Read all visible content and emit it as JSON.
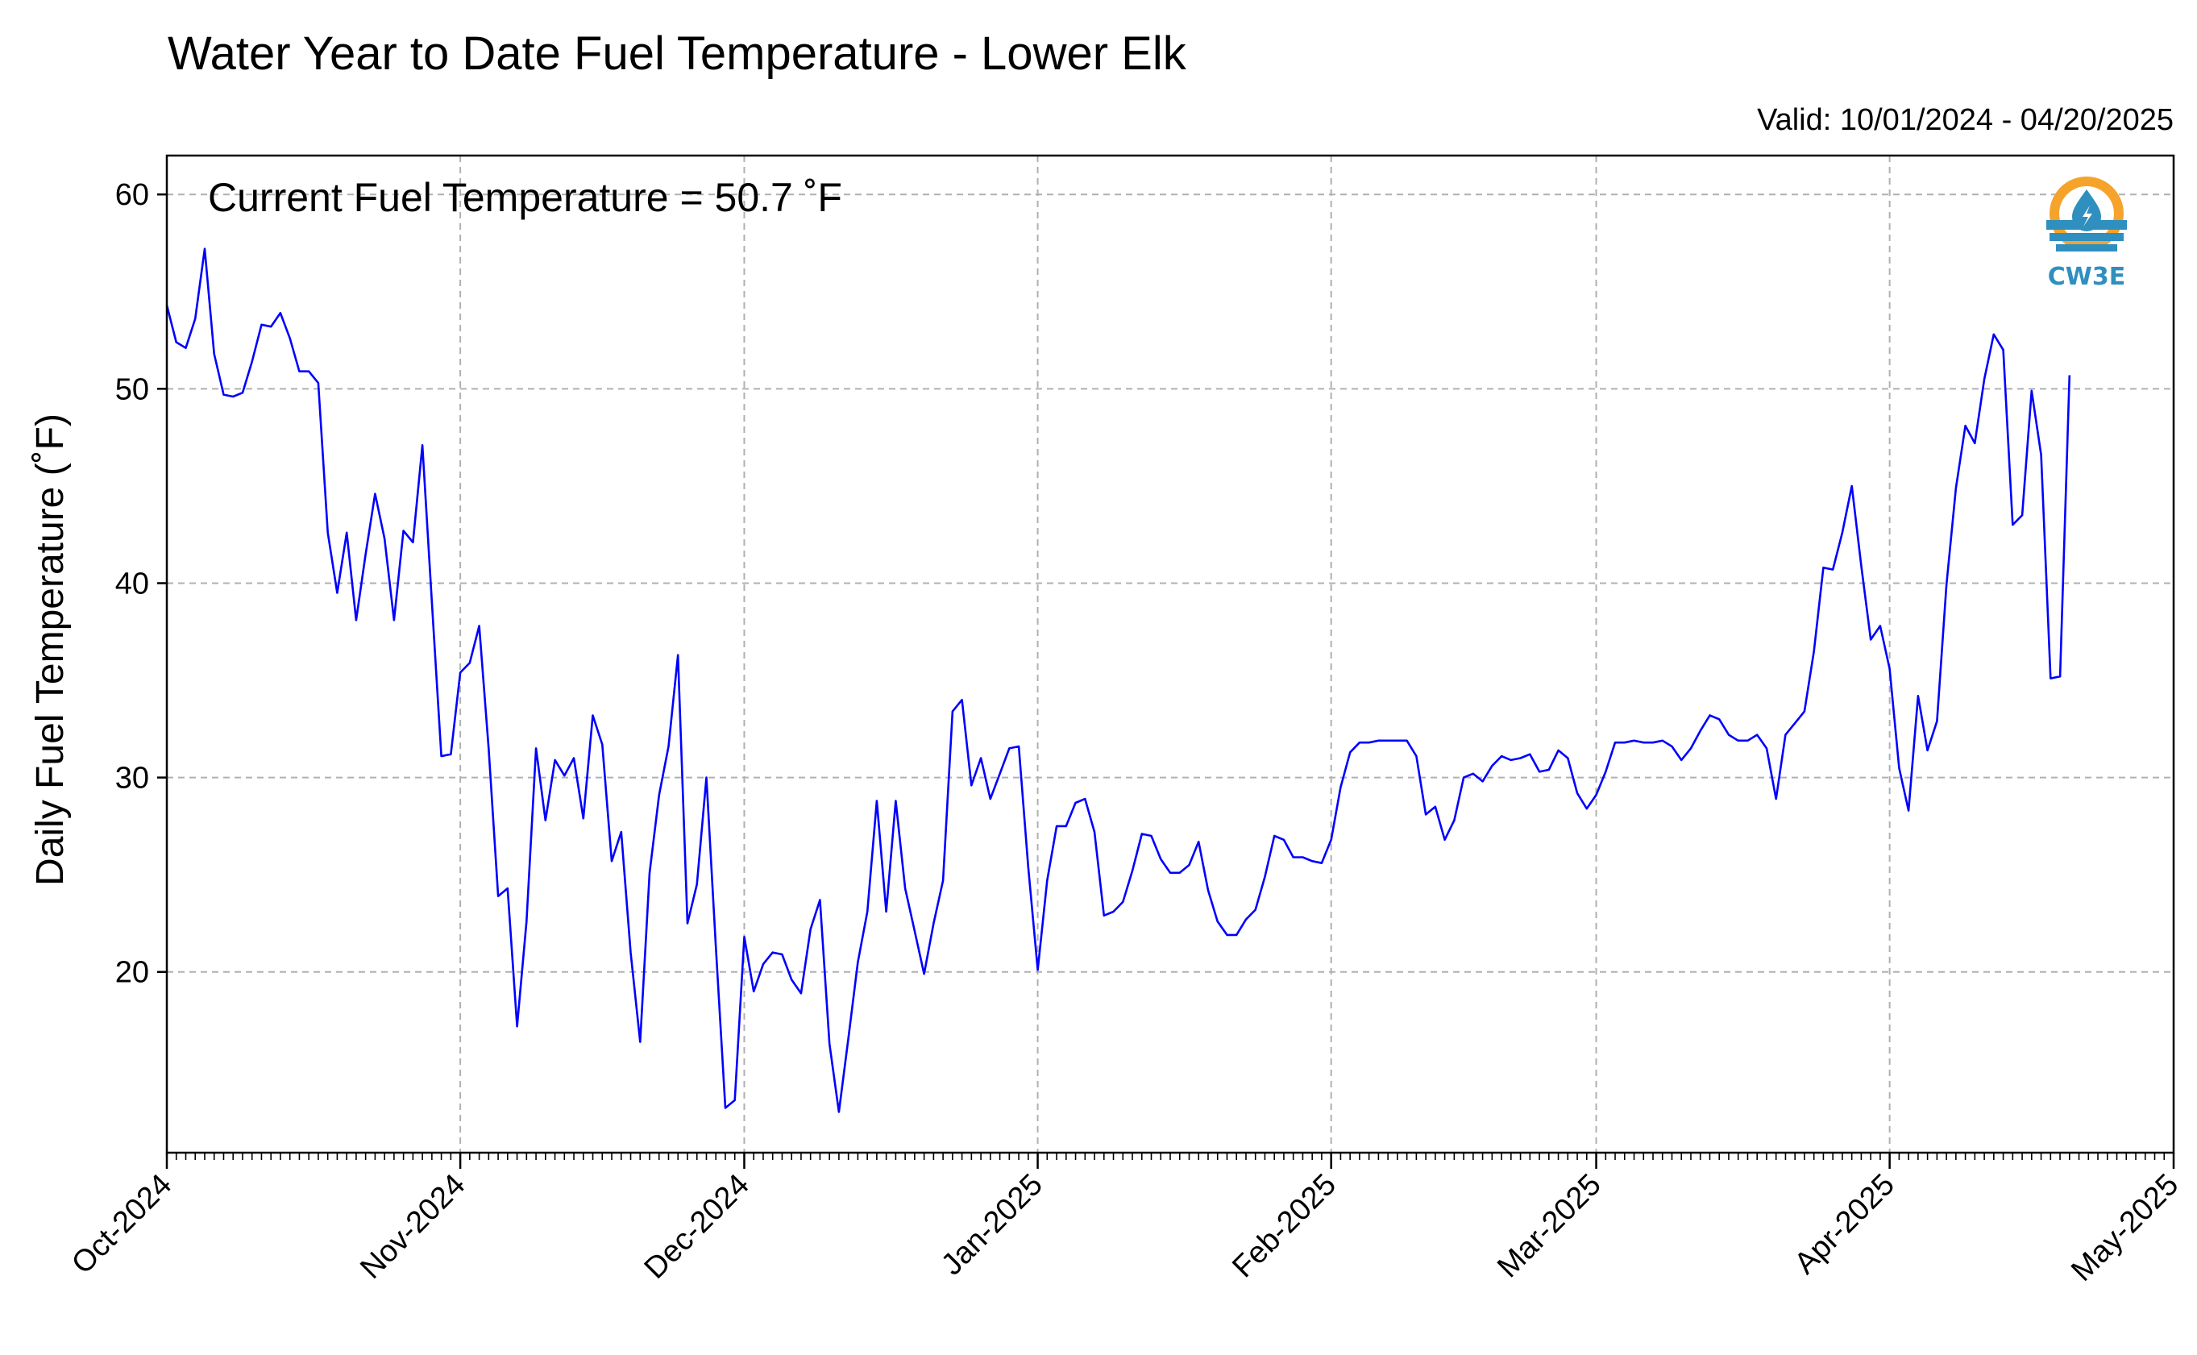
{
  "chart_data": {
    "type": "line",
    "title": "Water Year to Date Fuel Temperature - Lower Elk",
    "valid_label": "Valid: 10/01/2024 - 04/20/2025",
    "annotation": "Current Fuel Temperature = 50.7 ˚F",
    "ylabel": "Daily Fuel Temperature (˚F)",
    "xlabel": "",
    "ylim": [
      10.7,
      62
    ],
    "xlim": [
      "2024-10-01",
      "2025-05-01"
    ],
    "yticks": [
      20,
      30,
      40,
      50,
      60
    ],
    "ytick_labels": [
      "20",
      "30",
      "40",
      "50",
      "60"
    ],
    "xticks": [
      "2024-10-01",
      "2024-11-01",
      "2024-12-01",
      "2025-01-01",
      "2025-02-01",
      "2025-03-01",
      "2025-04-01",
      "2025-05-01"
    ],
    "xtick_labels": [
      "Oct-2024",
      "Nov-2024",
      "Dec-2024",
      "Jan-2025",
      "Feb-2025",
      "Mar-2025",
      "Apr-2025",
      "May-2025"
    ],
    "grid": true,
    "series": [
      {
        "color": "#0000ff",
        "start_date": "2024-10-01",
        "values": [
          54.3,
          52.4,
          52.1,
          53.6,
          57.2,
          51.8,
          49.7,
          49.6,
          49.8,
          51.4,
          53.3,
          53.2,
          53.9,
          52.6,
          50.9,
          50.9,
          50.3,
          42.6,
          39.5,
          42.6,
          38.1,
          41.5,
          44.6,
          42.3,
          38.1,
          42.7,
          42.1,
          47.1,
          39.0,
          31.1,
          31.2,
          35.4,
          35.9,
          37.8,
          31.5,
          23.9,
          24.3,
          17.2,
          22.6,
          31.5,
          27.8,
          30.9,
          30.1,
          31.0,
          27.9,
          33.2,
          31.7,
          25.7,
          27.2,
          21.0,
          16.4,
          25.1,
          29.1,
          31.6,
          36.3,
          22.5,
          24.5,
          30.0,
          21.3,
          13.0,
          13.4,
          21.8,
          19.0,
          20.4,
          21.0,
          20.9,
          19.6,
          18.9,
          22.2,
          23.7,
          16.3,
          12.8,
          16.6,
          20.5,
          23.1,
          28.8,
          23.1,
          28.8,
          24.3,
          22.1,
          19.9,
          22.5,
          24.7,
          33.4,
          34.0,
          29.6,
          31.0,
          28.9,
          30.2,
          31.5,
          31.6,
          25.4,
          20.1,
          24.7,
          27.5,
          27.5,
          28.7,
          28.9,
          27.2,
          22.9,
          23.1,
          23.6,
          25.2,
          27.1,
          27.0,
          25.8,
          25.1,
          25.1,
          25.5,
          26.7,
          24.2,
          22.6,
          21.9,
          21.9,
          22.7,
          23.2,
          24.9,
          27.0,
          26.8,
          25.9,
          25.9,
          25.7,
          25.6,
          26.8,
          29.5,
          31.3,
          31.8,
          31.8,
          31.9,
          31.9,
          31.9,
          31.9,
          31.1,
          28.1,
          28.5,
          26.8,
          27.8,
          30.0,
          30.2,
          29.8,
          30.6,
          31.1,
          30.9,
          31.0,
          31.2,
          30.3,
          30.4,
          31.4,
          31.0,
          29.2,
          28.4,
          29.1,
          30.3,
          31.8,
          31.8,
          31.9,
          31.8,
          31.8,
          31.9,
          31.6,
          30.9,
          31.5,
          32.4,
          33.2,
          33.0,
          32.2,
          31.9,
          31.9,
          32.2,
          31.5,
          28.9,
          32.2,
          32.8,
          33.4,
          36.5,
          40.8,
          40.7,
          42.6,
          45.0,
          40.9,
          37.1,
          37.8,
          35.6,
          30.5,
          28.3,
          34.2,
          31.4,
          32.9,
          39.9,
          44.9,
          48.1,
          47.2,
          50.5,
          52.8,
          52.0,
          43.0,
          43.5,
          49.9,
          46.6,
          35.1,
          35.2,
          50.7
        ]
      }
    ]
  },
  "logo": {
    "text": "CW3E",
    "accent_orange": "#f5a32b",
    "accent_blue": "#2f8fbf",
    "icon": "water-drop-icon"
  }
}
